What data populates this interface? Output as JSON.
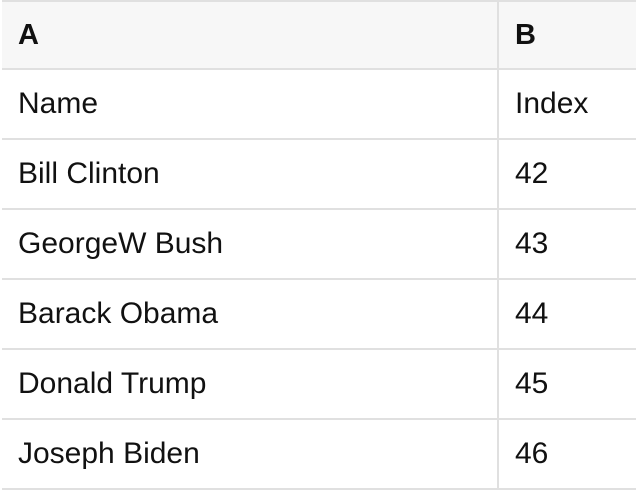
{
  "table": {
    "column_headers": [
      "A",
      "B"
    ],
    "rows": [
      {
        "a": "Name",
        "b": "Index"
      },
      {
        "a": "Bill Clinton",
        "b": "42"
      },
      {
        "a": "GeorgeW Bush",
        "b": "43"
      },
      {
        "a": "Barack Obama",
        "b": "44"
      },
      {
        "a": "Donald Trump",
        "b": "45"
      },
      {
        "a": "Joseph Biden",
        "b": "46"
      }
    ]
  },
  "colors": {
    "header_background": "#f7f7f7",
    "grid_border": "#e0e0e0",
    "text": "#111111",
    "row_background": "#ffffff"
  }
}
